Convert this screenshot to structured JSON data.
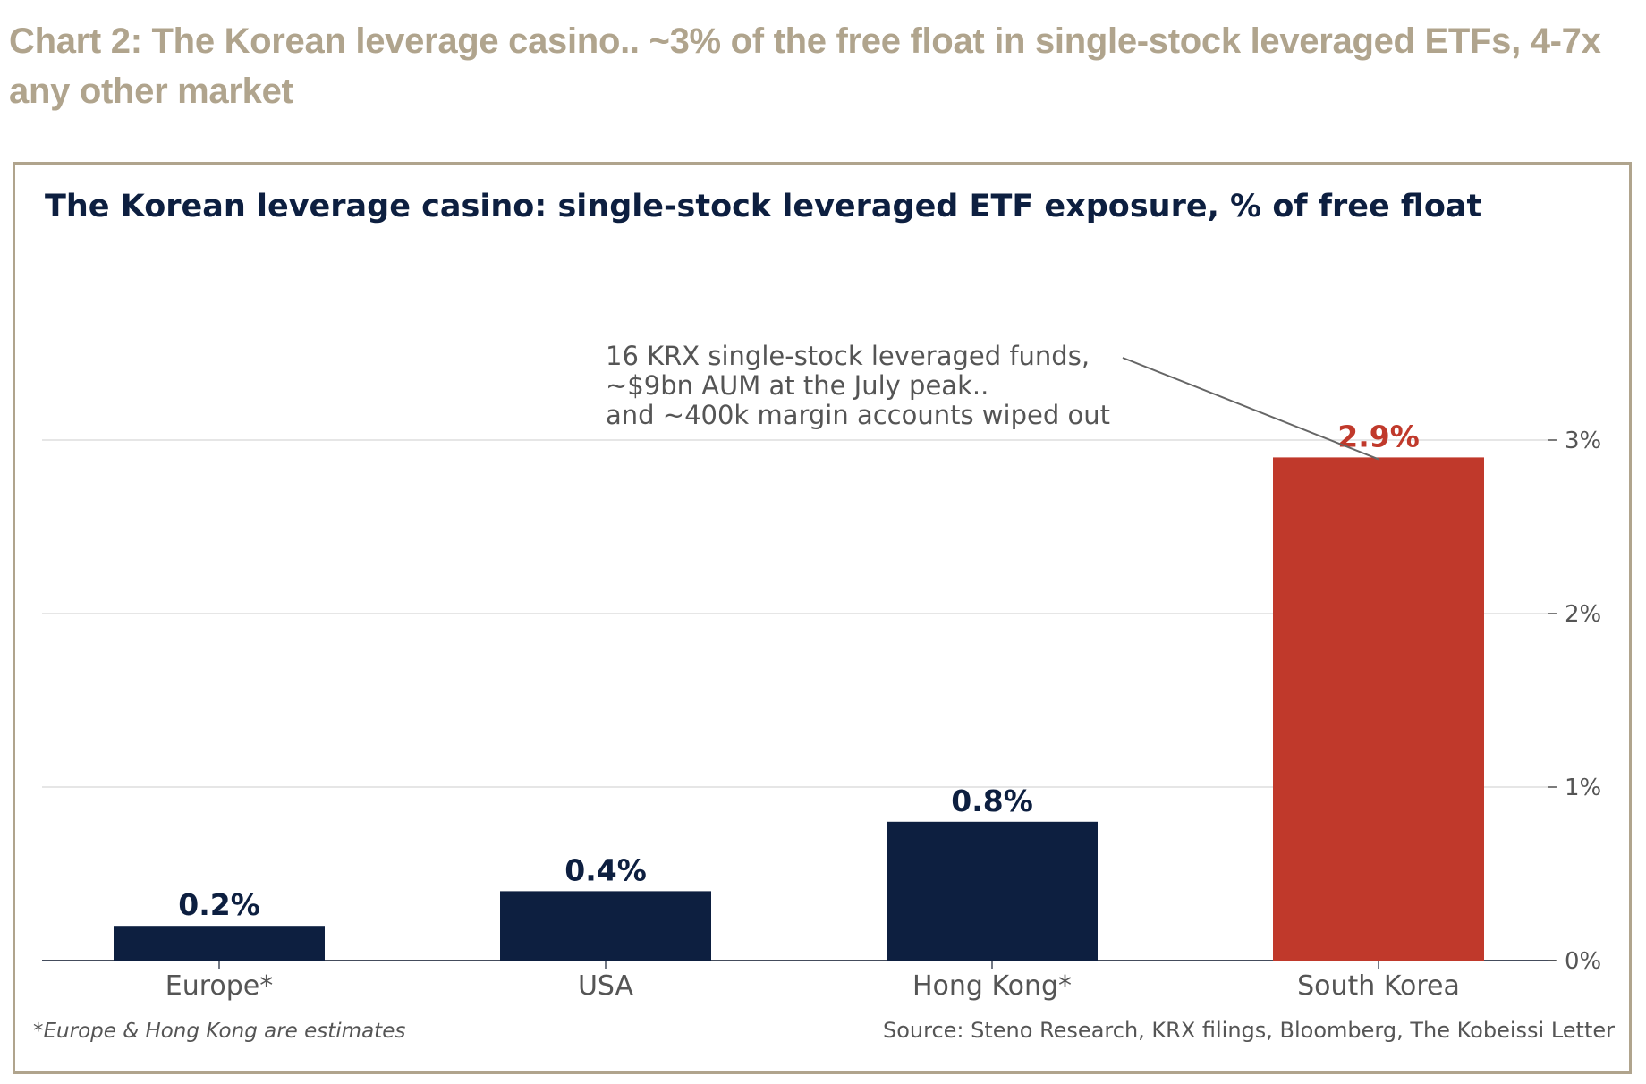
{
  "page": {
    "heading": "Chart 2: The Korean leverage casino.. ~3% of the free float in single-stock leveraged ETFs, 4-7x any other market"
  },
  "chart_data": {
    "type": "bar",
    "title": "The Korean leverage casino: single-stock leveraged ETF exposure, % of free float",
    "categories": [
      "Europe*",
      "USA",
      "Hong Kong*",
      "South Korea"
    ],
    "values": [
      0.2,
      0.4,
      0.8,
      2.9
    ],
    "value_labels": [
      "0.2%",
      "0.4%",
      "0.8%",
      "2.9%"
    ],
    "ylim": [
      0,
      3.3
    ],
    "y_ticks": [
      0,
      1,
      2,
      3
    ],
    "y_tick_labels": [
      "0%",
      "1%",
      "2%",
      "3%"
    ],
    "y_axis_side": "right",
    "grid": true,
    "annotation": {
      "lines": [
        "16 KRX single-stock leveraged funds,",
        "~$9bn AUM at the July peak..",
        "and ~400k margin accounts wiped out"
      ],
      "target_category": "South Korea"
    },
    "footnote": "*Europe & Hong Kong are estimates",
    "source": "Source: Steno Research, KRX filings, Bloomberg, The Kobeissi Letter",
    "colors": {
      "bar_default": "#0d1f40",
      "bar_highlight": "#c0392b",
      "label_default": "#0d1f40",
      "label_highlight": "#c0392b",
      "title": "#0d1f40",
      "axis_text": "#555555",
      "gridline": "#dddddd",
      "annotation_text": "#555555",
      "annotation_line": "#666666"
    },
    "highlight_category": "South Korea"
  }
}
